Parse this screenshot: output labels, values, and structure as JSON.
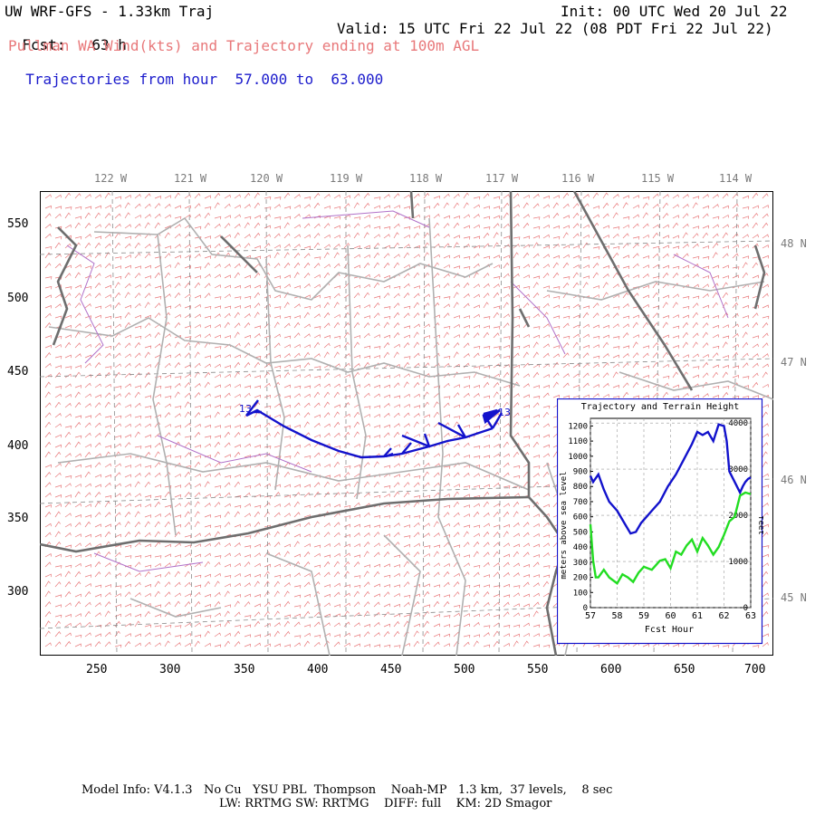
{
  "header": {
    "model_title": "UW WRF-GFS - 1.33km Traj",
    "init": "Init: 00 UTC Wed 20 Jul 22",
    "fcst_label": "Fcst:",
    "fcst_value": "63 h",
    "valid": "Valid: 15 UTC Fri 22 Jul 22 (08 PDT Fri 22 Jul 22)",
    "field_title": "Pullman WA Wind(kts) and Trajectory ending at 100m AGL",
    "traj_prefix": "Trajectories from hour",
    "traj_from": "57.000",
    "traj_to_word": "to",
    "traj_to": "63.000"
  },
  "map": {
    "x_ticks": [
      "250",
      "300",
      "350",
      "400",
      "450",
      "500",
      "550",
      "600",
      "650",
      "700"
    ],
    "y_ticks": [
      "550",
      "500",
      "450",
      "400",
      "350",
      "300"
    ],
    "lon_labels": [
      "122 W",
      "121 W",
      "120 W",
      "119 W",
      "118 W",
      "117 W",
      "116 W",
      "115 W",
      "114 W"
    ],
    "lat_labels": [
      "48 N",
      "47 N",
      "46 N",
      "45 N"
    ],
    "traj_start_label": "13",
    "traj_end_label": "13",
    "colors": {
      "wind_barbs": "#e8787a",
      "trajectory": "#1212cc",
      "terrain_line": "#22dd22",
      "border": "#6e6e6e",
      "county": "#b0b0b0",
      "water": "#b070c8"
    }
  },
  "inset": {
    "title": "Trajectory and Terrain Height",
    "ylabel_left": "meters above sea level",
    "ylabel_right": "feet",
    "xlabel": "Fcst Hour",
    "x_ticks": [
      "57",
      "58",
      "59",
      "60",
      "61",
      "62",
      "63"
    ],
    "y_ticks_m": [
      "1200",
      "1100",
      "1000",
      "900",
      "800",
      "700",
      "600",
      "500",
      "400",
      "300",
      "200",
      "100",
      "0"
    ],
    "y_ticks_ft": [
      "4000",
      "3000",
      "2000",
      "1000",
      "0"
    ]
  },
  "chart_data": {
    "type": "line",
    "title": "Trajectory and Terrain Height",
    "xlabel": "Fcst Hour",
    "ylabel": "meters above sea level",
    "xlim": [
      57,
      63
    ],
    "ylim": [
      0,
      1250
    ],
    "series": [
      {
        "name": "",
        "color": "#1212cc",
        "x": [
          57.0,
          57.1,
          57.3,
          57.5,
          57.7,
          58.0,
          58.3,
          58.5,
          58.7,
          58.9,
          59.1,
          59.3,
          59.6,
          59.9,
          60.2,
          60.5,
          60.8,
          61.0,
          61.2,
          61.4,
          61.6,
          61.8,
          62.0,
          62.1,
          62.2,
          62.4,
          62.6,
          62.7,
          62.8,
          62.9,
          63.0
        ],
        "y": [
          870,
          830,
          880,
          780,
          700,
          640,
          550,
          490,
          500,
          560,
          600,
          640,
          700,
          800,
          880,
          980,
          1080,
          1160,
          1140,
          1160,
          1100,
          1210,
          1200,
          1100,
          900,
          830,
          760,
          800,
          830,
          850,
          860
        ]
      },
      {
        "name": "",
        "color": "#22dd22",
        "x": [
          57.0,
          57.1,
          57.2,
          57.3,
          57.5,
          57.7,
          58.0,
          58.2,
          58.4,
          58.6,
          58.8,
          59.0,
          59.3,
          59.6,
          59.8,
          60.0,
          60.2,
          60.4,
          60.6,
          60.8,
          61.0,
          61.2,
          61.4,
          61.6,
          61.8,
          62.0,
          62.2,
          62.4,
          62.6,
          62.8,
          63.0
        ],
        "y": [
          550,
          310,
          200,
          200,
          250,
          200,
          160,
          220,
          200,
          170,
          230,
          270,
          250,
          310,
          320,
          260,
          370,
          350,
          410,
          450,
          370,
          460,
          410,
          350,
          400,
          480,
          570,
          600,
          740,
          760,
          750
        ]
      }
    ]
  },
  "footer": {
    "line1": "Model Info: V4.1.3   No Cu   YSU PBL  Thompson    Noah-MP   1.3 km,  37 levels,    8 sec",
    "line2": "LW: RRTMG SW: RRTMG    DIFF: full    KM: 2D Smagor"
  }
}
